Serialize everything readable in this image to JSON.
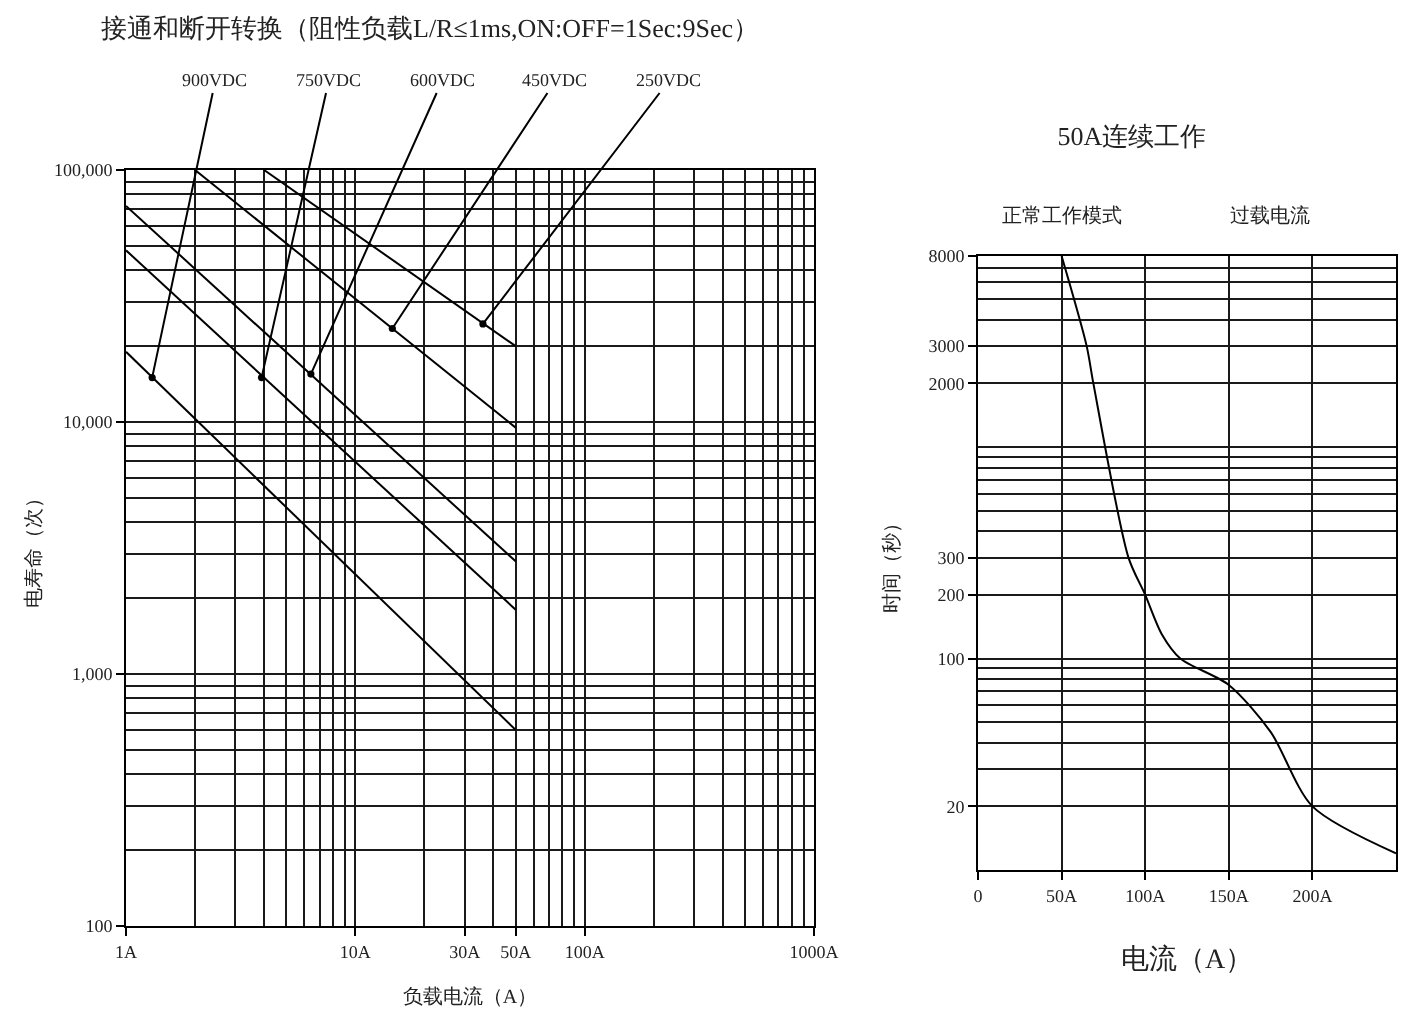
{
  "chart_data": [
    {
      "type": "line",
      "title": "接通和断开转换（阻性负载L/R≤1ms,ON:OFF=1Sec:9Sec）",
      "xlabel": "负载电流（A）",
      "ylabel": "电寿命（次）",
      "log": "xy",
      "grid": true,
      "xlim": [
        1,
        1000
      ],
      "ylim": [
        100,
        100000
      ],
      "xticks": [
        {
          "value": 1,
          "label": "1A"
        },
        {
          "value": 2,
          "label": null
        },
        {
          "value": 3,
          "label": null
        },
        {
          "value": 4,
          "label": null
        },
        {
          "value": 5,
          "label": null
        },
        {
          "value": 6,
          "label": null
        },
        {
          "value": 7,
          "label": null
        },
        {
          "value": 8,
          "label": null
        },
        {
          "value": 9,
          "label": null
        },
        {
          "value": 10,
          "label": "10A"
        },
        {
          "value": 20,
          "label": null
        },
        {
          "value": 30,
          "label": "30A"
        },
        {
          "value": 40,
          "label": null
        },
        {
          "value": 50,
          "label": "50A"
        },
        {
          "value": 60,
          "label": null
        },
        {
          "value": 70,
          "label": null
        },
        {
          "value": 80,
          "label": null
        },
        {
          "value": 90,
          "label": null
        },
        {
          "value": 100,
          "label": "100A"
        },
        {
          "value": 200,
          "label": null
        },
        {
          "value": 300,
          "label": null
        },
        {
          "value": 400,
          "label": null
        },
        {
          "value": 500,
          "label": null
        },
        {
          "value": 600,
          "label": null
        },
        {
          "value": 700,
          "label": null
        },
        {
          "value": 800,
          "label": null
        },
        {
          "value": 900,
          "label": null
        },
        {
          "value": 1000,
          "label": "1000A"
        }
      ],
      "yticks": [
        100,
        {
          "value": 200,
          "label": null
        },
        {
          "value": 300,
          "label": null
        },
        {
          "value": 400,
          "label": null
        },
        {
          "value": 500,
          "label": null
        },
        {
          "value": 600,
          "label": null
        },
        {
          "value": 700,
          "label": null
        },
        {
          "value": 800,
          "label": null
        },
        {
          "value": 900,
          "label": null
        },
        {
          "value": 1000,
          "label": "1,000"
        },
        {
          "value": 2000,
          "label": null
        },
        {
          "value": 3000,
          "label": null
        },
        {
          "value": 4000,
          "label": null
        },
        {
          "value": 5000,
          "label": null
        },
        {
          "value": 6000,
          "label": null
        },
        {
          "value": 7000,
          "label": null
        },
        {
          "value": 8000,
          "label": null
        },
        {
          "value": 9000,
          "label": null
        },
        {
          "value": 10000,
          "label": "10,000"
        },
        {
          "value": 20000,
          "label": null
        },
        {
          "value": 30000,
          "label": null
        },
        {
          "value": 40000,
          "label": null
        },
        {
          "value": 50000,
          "label": null
        },
        {
          "value": 60000,
          "label": null
        },
        {
          "value": 70000,
          "label": null
        },
        {
          "value": 80000,
          "label": null
        },
        {
          "value": 90000,
          "label": null
        },
        {
          "value": 100000,
          "label": "100,000"
        }
      ],
      "series": [
        {
          "color": "#000000",
          "x": [
            1,
            50
          ],
          "values": [
            19000,
            600
          ]
        },
        {
          "color": "#000000",
          "x": [
            1,
            50
          ],
          "values": [
            48000,
            1800
          ]
        },
        {
          "color": "#000000",
          "x": [
            1,
            50
          ],
          "values": [
            72000,
            2800
          ]
        },
        {
          "color": "#000000",
          "x": [
            2,
            50
          ],
          "values": [
            100000,
            9500
          ]
        },
        {
          "color": "#000000",
          "x": [
            4,
            50
          ],
          "values": [
            100000,
            20000
          ]
        }
      ],
      "annotations": [
        {
          "text": "900VDC",
          "x": 1.3,
          "y": 15000
        },
        {
          "text": "750VDC",
          "x": 3.9,
          "y": 15000
        },
        {
          "text": "600VDC",
          "x": 6.4,
          "y": 15500
        },
        {
          "text": "450VDC",
          "x": 14.5,
          "y": 23500
        },
        {
          "text": "250VDC",
          "x": 36,
          "y": 24500
        }
      ]
    },
    {
      "type": "line",
      "title": "50A连续工作",
      "xlabel": "电流（A）",
      "ylabel": "时间（秒）",
      "log": "y",
      "grid": true,
      "xlim": [
        0,
        250
      ],
      "ylim": [
        10,
        8000
      ],
      "xticks": [
        0,
        {
          "value": 50,
          "label": "50A"
        },
        {
          "value": 100,
          "label": "100A"
        },
        {
          "value": 150,
          "label": "150A"
        },
        {
          "value": 200,
          "label": "200A"
        }
      ],
      "yticks": [
        20,
        {
          "value": 30,
          "label": null
        },
        {
          "value": 40,
          "label": null
        },
        {
          "value": 50,
          "label": null
        },
        {
          "value": 60,
          "label": null
        },
        {
          "value": 70,
          "label": null
        },
        {
          "value": 80,
          "label": null
        },
        {
          "value": 90,
          "label": null
        },
        100,
        200,
        300,
        {
          "value": 400,
          "label": null
        },
        {
          "value": 500,
          "label": null
        },
        {
          "value": 600,
          "label": null
        },
        {
          "value": 700,
          "label": null
        },
        {
          "value": 800,
          "label": null
        },
        {
          "value": 900,
          "label": null
        },
        {
          "value": 1000,
          "label": null
        },
        2000,
        3000,
        {
          "value": 4000,
          "label": null
        },
        {
          "value": 5000,
          "label": null
        },
        {
          "value": 6000,
          "label": null
        },
        {
          "value": 7000,
          "label": null
        },
        8000
      ],
      "series": [
        {
          "color": "#000000",
          "x": [
            50,
            65,
            69,
            90,
            100,
            110,
            121,
            150,
            175,
            200,
            250
          ],
          "values": [
            8000,
            3000,
            2000,
            300,
            200,
            130,
            100,
            75,
            45,
            20,
            12
          ]
        }
      ],
      "annotations": [
        "正常工作模式",
        "过载电流"
      ]
    }
  ]
}
